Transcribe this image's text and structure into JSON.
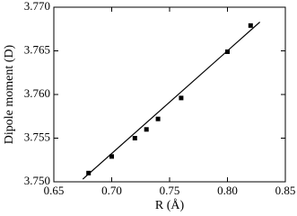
{
  "chart_data": {
    "type": "scatter",
    "xlabel": "R (Å)",
    "ylabel": "Dipole moment (D)",
    "xlim": [
      0.65,
      0.85
    ],
    "xticks": [
      {
        "value": 0.65,
        "label": "0.65"
      },
      {
        "value": 0.7,
        "label": "0.70"
      },
      {
        "value": 0.75,
        "label": "0.75"
      },
      {
        "value": 0.8,
        "label": "0.80"
      },
      {
        "value": 0.85,
        "label": "0.85"
      }
    ],
    "ylim": [
      3.75,
      3.77
    ],
    "yticks": [
      {
        "value": 3.75,
        "label": "3.750"
      },
      {
        "value": 3.755,
        "label": "3.755"
      },
      {
        "value": 3.76,
        "label": "3.760"
      },
      {
        "value": 3.765,
        "label": "3.765"
      },
      {
        "value": 3.77,
        "label": "3.770"
      }
    ],
    "series": [
      {
        "style": "markers",
        "color": "#000000",
        "x": [
          0.68,
          0.7,
          0.72,
          0.73,
          0.74,
          0.76,
          0.8,
          0.82
        ],
        "values": [
          3.751,
          3.7529,
          3.755,
          3.756,
          3.7572,
          3.7596,
          3.7649,
          3.7679
        ]
      },
      {
        "style": "line",
        "color": "#000000",
        "x": [
          0.675,
          0.828
        ],
        "values": [
          3.7503,
          3.7683
        ]
      }
    ]
  }
}
